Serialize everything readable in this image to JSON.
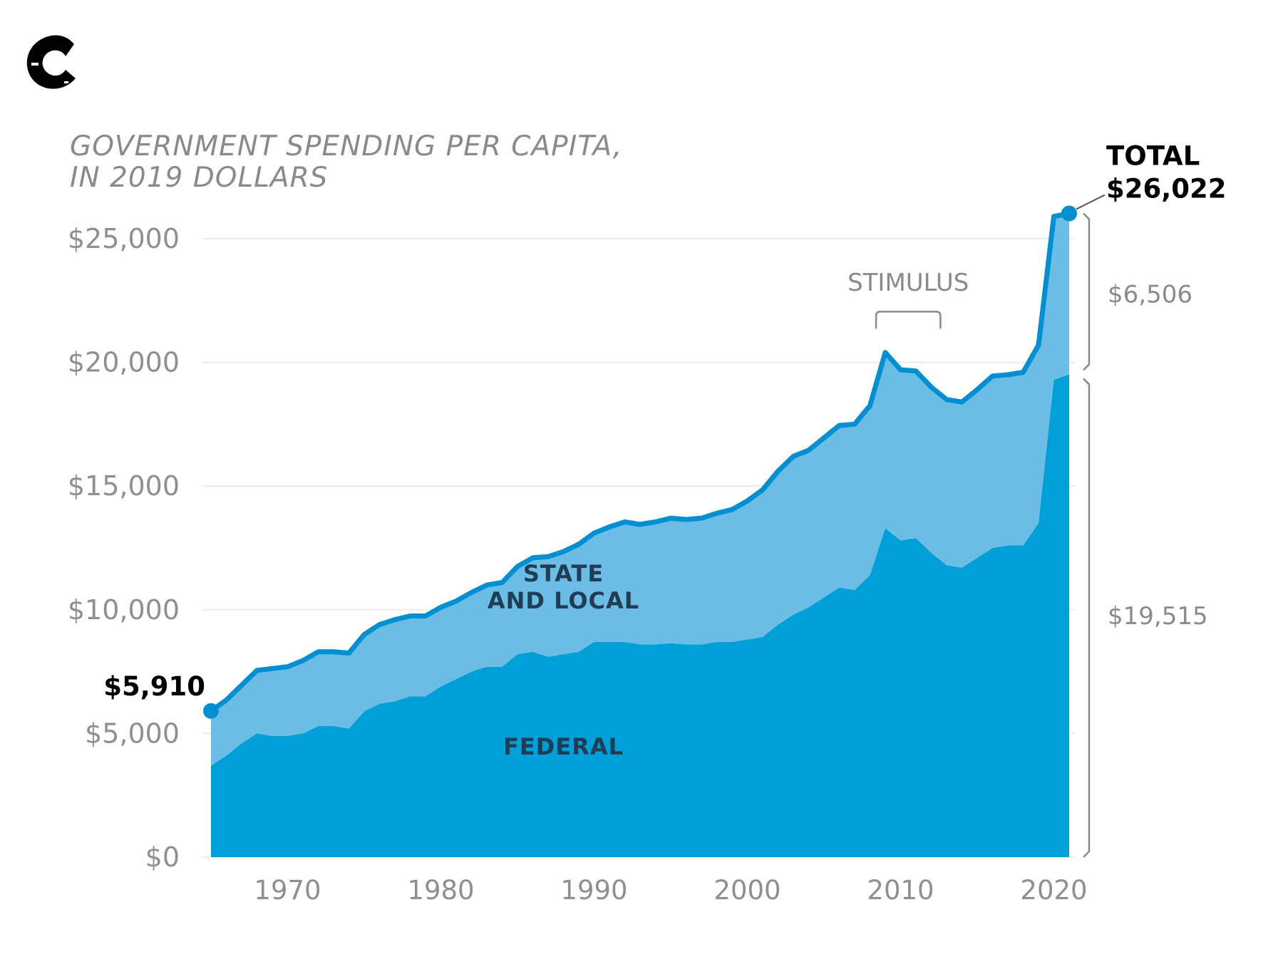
{
  "logo": {
    "letter": "C"
  },
  "chart_data": {
    "type": "area",
    "title": [
      "GOVERNMENT SPENDING PER CAPITA,",
      "IN 2019 DOLLARS"
    ],
    "xlabel": "",
    "ylabel": "",
    "xlim": [
      1965,
      2021
    ],
    "ylim": [
      0,
      25000
    ],
    "grid": true,
    "x_ticks": [
      1970,
      1980,
      1990,
      2000,
      2010,
      2020
    ],
    "y_ticks": [
      {
        "value": 0,
        "label": "$0"
      },
      {
        "value": 5000,
        "label": "$5,000"
      },
      {
        "value": 10000,
        "label": "$10,000"
      },
      {
        "value": 15000,
        "label": "$15,000"
      },
      {
        "value": 20000,
        "label": "$20,000"
      },
      {
        "value": 25000,
        "label": "$25,000"
      }
    ],
    "x": [
      1965,
      1966,
      1967,
      1968,
      1969,
      1970,
      1971,
      1972,
      1973,
      1974,
      1975,
      1976,
      1977,
      1978,
      1979,
      1980,
      1981,
      1982,
      1983,
      1984,
      1985,
      1986,
      1987,
      1988,
      1989,
      1990,
      1991,
      1992,
      1993,
      1994,
      1995,
      1996,
      1997,
      1998,
      1999,
      2000,
      2001,
      2002,
      2003,
      2004,
      2005,
      2006,
      2007,
      2008,
      2009,
      2010,
      2011,
      2012,
      2013,
      2014,
      2015,
      2016,
      2017,
      2018,
      2019,
      2020,
      2021
    ],
    "series": [
      {
        "name": "FEDERAL",
        "color": "#009fd8",
        "values": [
          3700,
          4100,
          4600,
          5000,
          4900,
          4900,
          5000,
          5300,
          5300,
          5200,
          5900,
          6200,
          6300,
          6500,
          6500,
          6900,
          7200,
          7500,
          7700,
          7700,
          8200,
          8300,
          8100,
          8200,
          8300,
          8700,
          8700,
          8700,
          8600,
          8600,
          8650,
          8600,
          8600,
          8700,
          8700,
          8800,
          8900,
          9400,
          9800,
          10100,
          10500,
          10900,
          10800,
          11400,
          13300,
          12800,
          12900,
          12300,
          11800,
          11700,
          12100,
          12500,
          12600,
          12600,
          13500,
          19300,
          19515
        ]
      },
      {
        "name": "STATE AND LOCAL",
        "color": "#6cbde6",
        "values": [
          2210,
          2250,
          2350,
          2550,
          2720,
          2800,
          2950,
          3000,
          3000,
          3050,
          3100,
          3200,
          3300,
          3250,
          3250,
          3200,
          3150,
          3200,
          3300,
          3400,
          3550,
          3800,
          4050,
          4150,
          4350,
          4400,
          4650,
          4850,
          4850,
          4950,
          5050,
          5050,
          5100,
          5200,
          5350,
          5600,
          5950,
          6200,
          6400,
          6350,
          6450,
          6550,
          6700,
          6850,
          7100,
          6900,
          6750,
          6700,
          6700,
          6700,
          6800,
          6950,
          6900,
          7000,
          7200,
          6600,
          6506
        ]
      }
    ],
    "total_line_color": "#008fd0",
    "annotations": {
      "start_value": "$5,910",
      "end_total_label": "TOTAL",
      "end_total_value": "$26,022",
      "stimulus_label": "STIMULUS",
      "stimulus_range": [
        2009,
        2013
      ],
      "state_bracket_label": "$6,506",
      "federal_bracket_label": "$19,515"
    },
    "series_labels": [
      "STATE",
      "AND LOCAL",
      "FEDERAL"
    ]
  }
}
